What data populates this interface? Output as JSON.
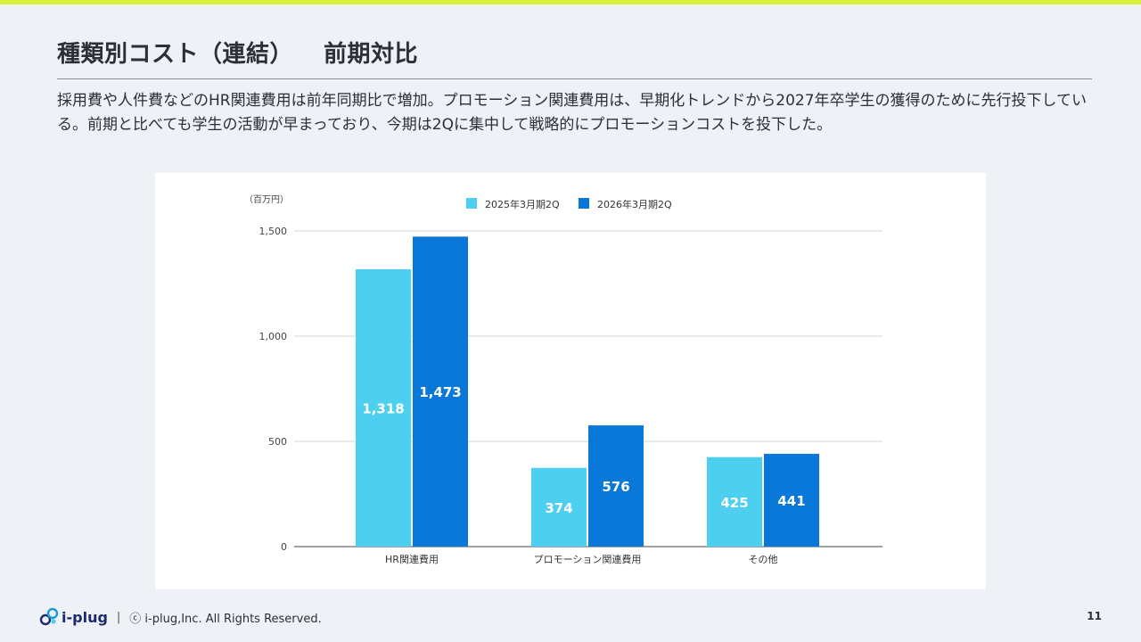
{
  "slide": {
    "title_main": "種類別コスト（連結）",
    "title_sub": "前期対比",
    "description": "採用費や人件費などのHR関連費用は前年同期比で増加。プロモーション関連費用は、早期化トレンドから2027年卒学生の獲得のために先行投下している。前期と比べても学生の活動が早まっており、今期は2Qに集中して戦略的にプロモーションコストを投下した。"
  },
  "footer": {
    "logo_text": "i-plug",
    "separator": "|",
    "copyright": "ⓒ i-plug,Inc. All Rights Reserved.",
    "page_number": "11"
  },
  "colors": {
    "accent_bar": "#d7f23a",
    "series_2025": "#4dd0ef",
    "series_2026": "#0a78d8",
    "grid": "#d0d3d8",
    "axis": "#444444"
  },
  "chart_data": {
    "type": "bar",
    "unit_label": "（百万円）",
    "categories": [
      "HR関連費用",
      "プロモーション関連費用",
      "その他"
    ],
    "series": [
      {
        "name": "2025年3月期2Q",
        "values": [
          1318,
          374,
          425
        ],
        "labels": [
          "1,318",
          "374",
          "425"
        ]
      },
      {
        "name": "2026年3月期2Q",
        "values": [
          1473,
          576,
          441
        ],
        "labels": [
          "1,473",
          "576",
          "441"
        ]
      }
    ],
    "y_ticks": [
      0,
      500,
      1000,
      1500
    ],
    "y_tick_labels": [
      "0",
      "500",
      "1,000",
      "1,500"
    ],
    "ylim": [
      0,
      1500
    ],
    "grid": true,
    "legend_position": "top-center"
  }
}
